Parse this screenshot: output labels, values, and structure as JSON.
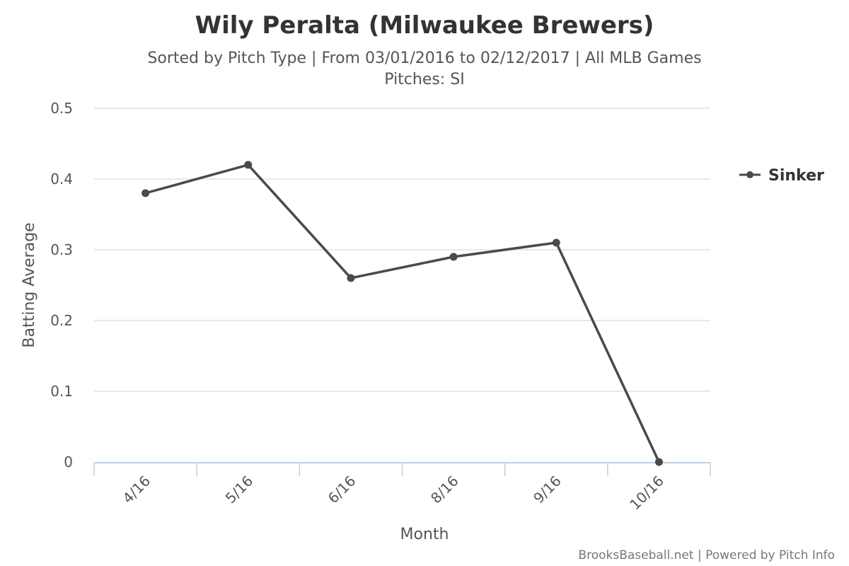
{
  "chart_data": {
    "type": "line",
    "title": "Wily Peralta (Milwaukee Brewers)",
    "subtitle_line1": "Sorted by Pitch Type | From 03/01/2016 to 02/12/2017 | All MLB Games",
    "subtitle_line2": "Pitches: SI",
    "xlabel": "Month",
    "ylabel": "Batting Average",
    "categories": [
      "4/16",
      "5/16",
      "6/16",
      "8/16",
      "9/16",
      "10/16"
    ],
    "series": [
      {
        "name": "Sinker",
        "values": [
          0.38,
          0.42,
          0.26,
          0.29,
          0.31,
          0.0
        ],
        "color": "#4a4a4a"
      }
    ],
    "ylim": [
      0,
      0.5
    ],
    "yticks": [
      {
        "value": 0,
        "label": "0"
      },
      {
        "value": 0.1,
        "label": "0.1"
      },
      {
        "value": 0.2,
        "label": "0.2"
      },
      {
        "value": 0.3,
        "label": "0.3"
      },
      {
        "value": 0.4,
        "label": "0.4"
      },
      {
        "value": 0.5,
        "label": "0.5"
      }
    ],
    "grid": true,
    "legend_position": "right-top",
    "credits": "BrooksBaseball.net | Powered by Pitch Info"
  }
}
